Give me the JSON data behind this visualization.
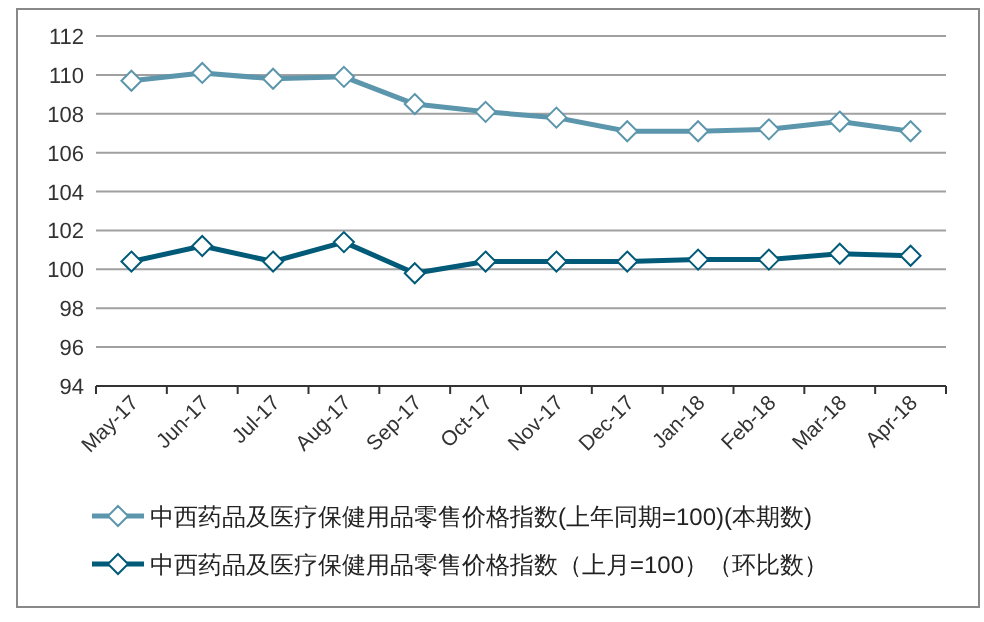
{
  "chart_data": {
    "type": "line",
    "categories": [
      "May-17",
      "Jun-17",
      "Jul-17",
      "Aug-17",
      "Sep-17",
      "Oct-17",
      "Nov-17",
      "Dec-17",
      "Jan-18",
      "Feb-18",
      "Mar-18",
      "Apr-18"
    ],
    "series": [
      {
        "name": "中西药品及医疗保健用品零售价格指数(上年同期=100)(本期数)",
        "color": "#5b96ac",
        "values": [
          109.7,
          110.1,
          109.8,
          109.9,
          108.5,
          108.1,
          107.8,
          107.1,
          107.1,
          107.2,
          107.6,
          107.1
        ]
      },
      {
        "name": "中西药品及医疗保健用品零售价格指数（上月=100）（环比数）",
        "color": "#005a78",
        "values": [
          100.4,
          101.2,
          100.4,
          101.4,
          99.8,
          100.4,
          100.4,
          100.4,
          100.5,
          100.5,
          100.8,
          100.7
        ]
      }
    ],
    "ylim": [
      94,
      112
    ],
    "yticks": [
      94,
      96,
      98,
      100,
      102,
      104,
      106,
      108,
      110,
      112
    ],
    "grid": "y",
    "legend": "bottom",
    "marker": "diamond",
    "line_style": "solid"
  }
}
